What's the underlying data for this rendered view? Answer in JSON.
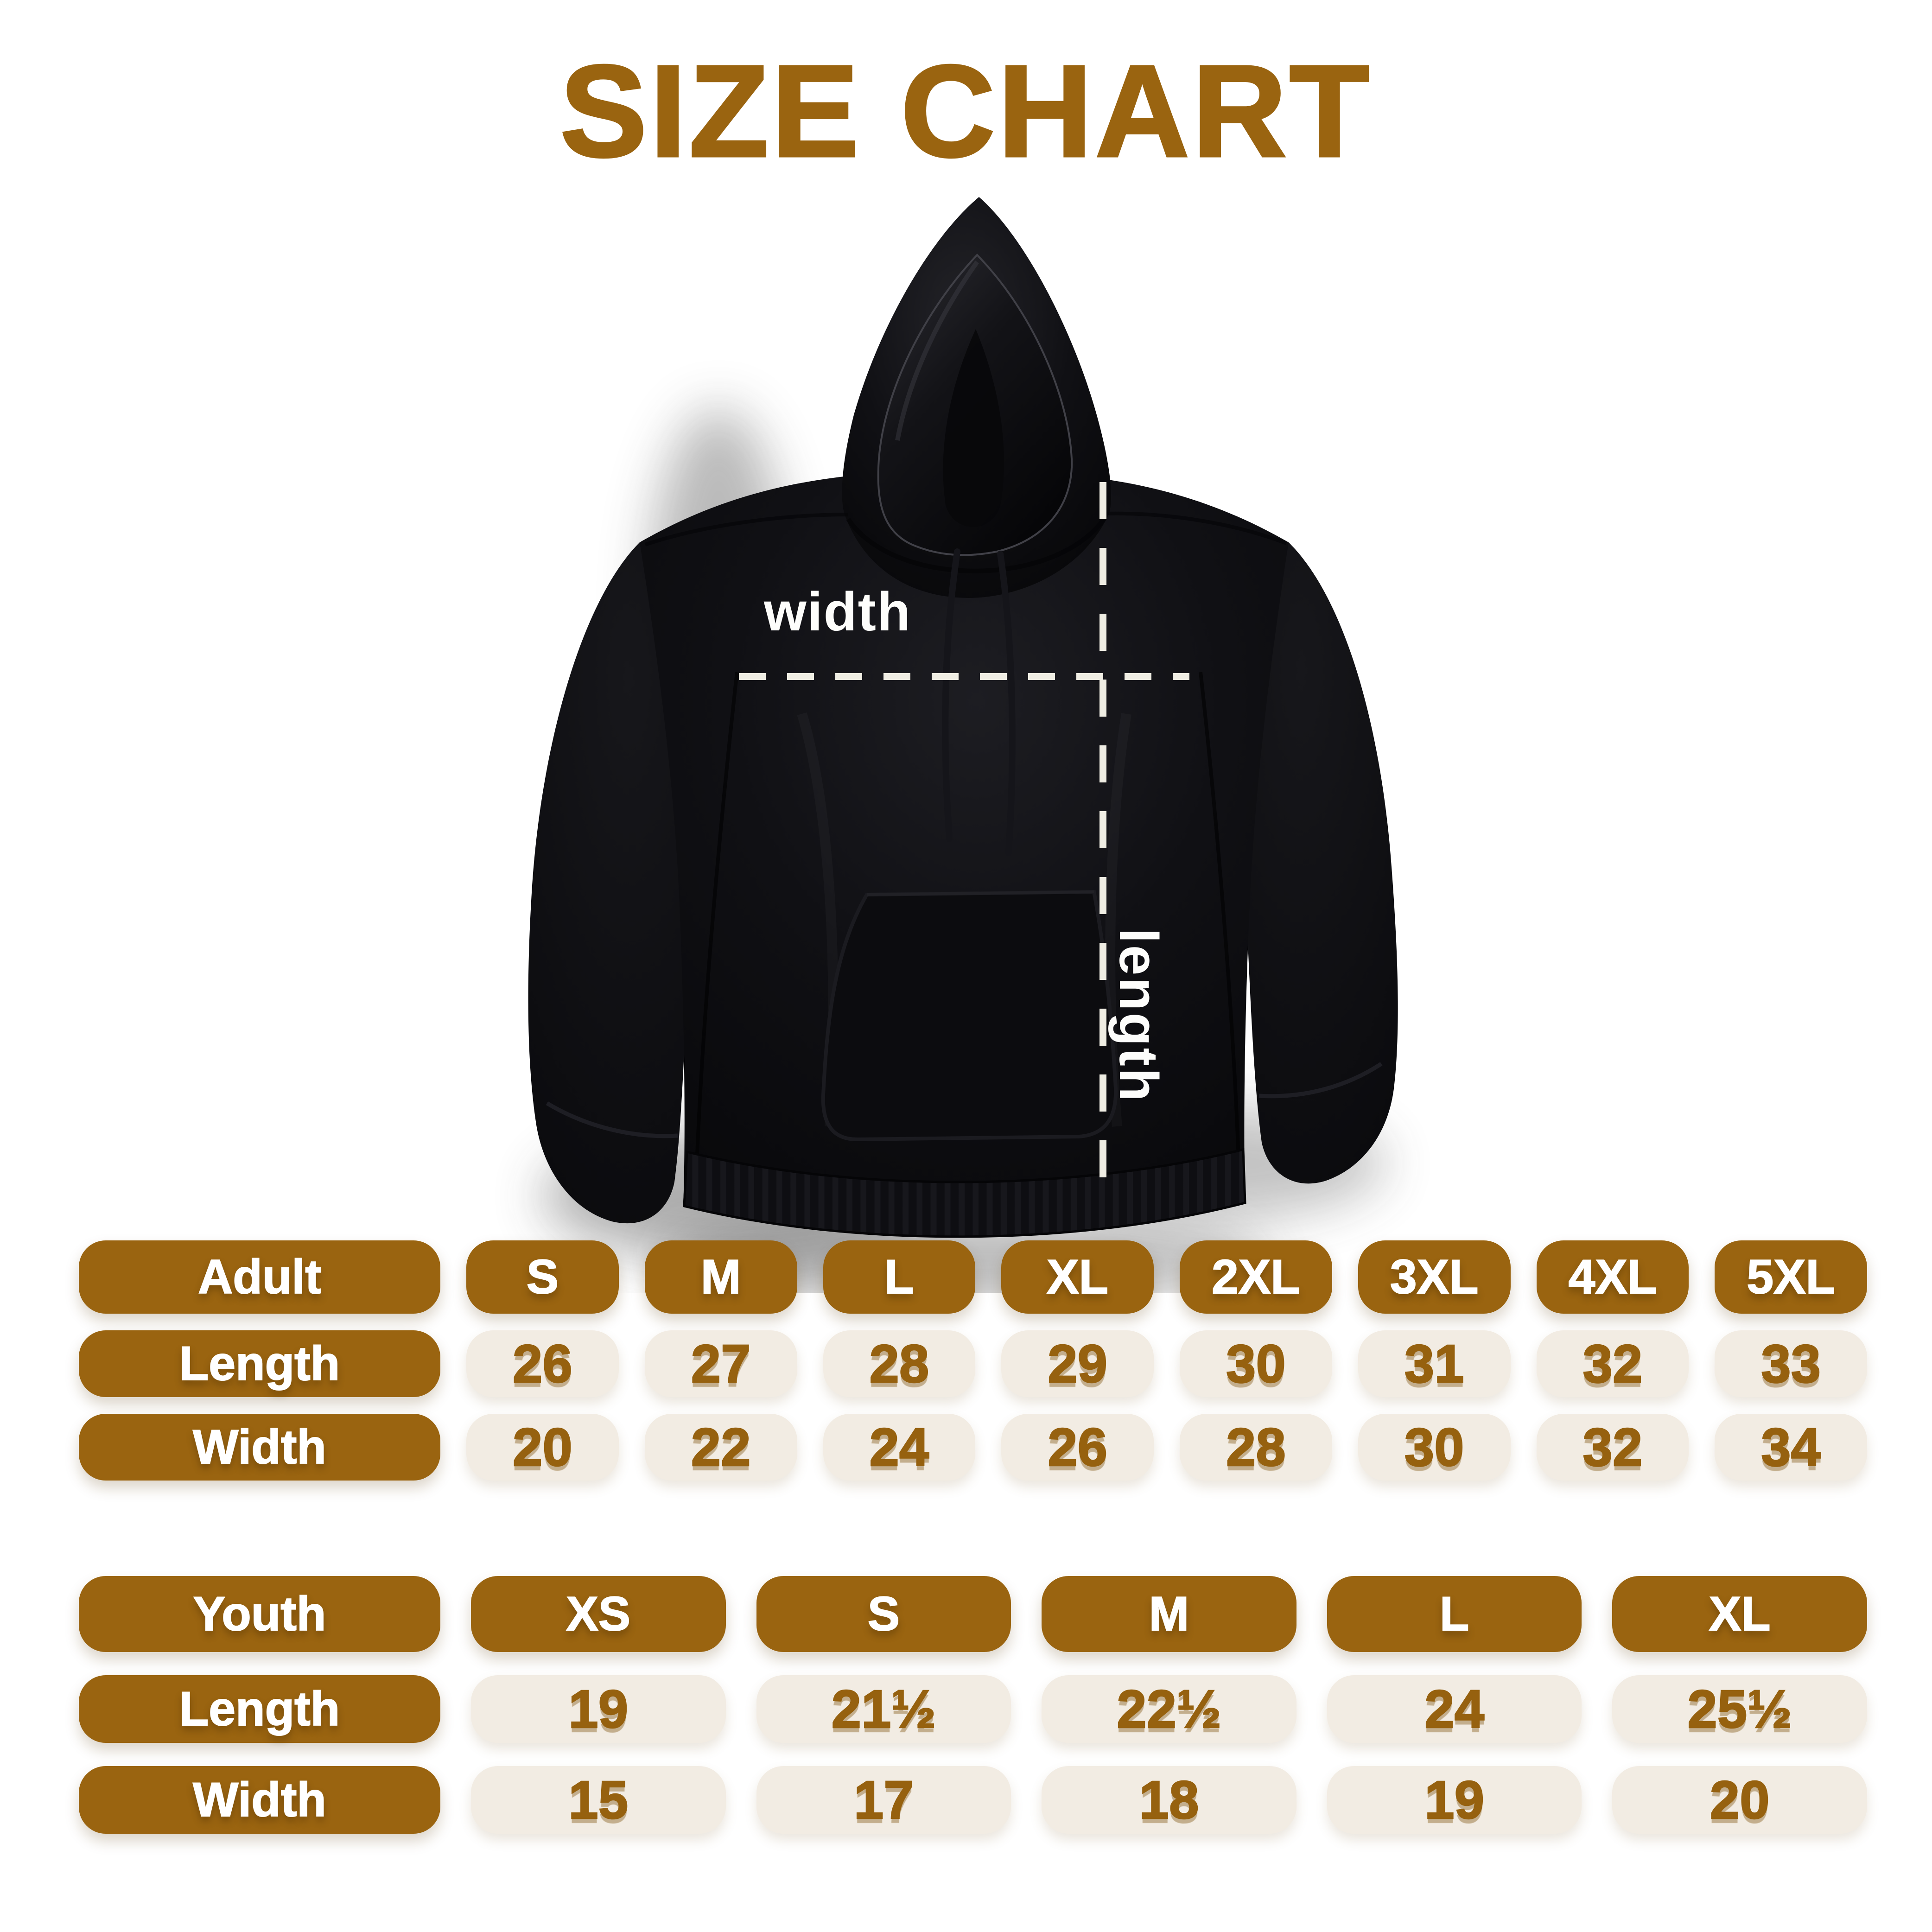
{
  "title": "SIZE CHART",
  "diagram": {
    "garment": "black pullover hoodie, flat lay, front view",
    "width_label": "width",
    "length_label": "length"
  },
  "colors": {
    "accent_brown": "#9A6410",
    "cell_cream": "#F2ECE3",
    "value_text": "#96610F",
    "header_text": "#FFFFFF",
    "dash_line": "#EFEDE3",
    "hoodie_black": "#0B0B0E",
    "background": "#FFFFFF"
  },
  "chart_data": [
    {
      "type": "table",
      "name": "adult",
      "title_cell": "Adult",
      "columns": [
        "S",
        "M",
        "L",
        "XL",
        "2XL",
        "3XL",
        "4XL",
        "5XL"
      ],
      "rows": [
        {
          "label": "Length",
          "values": [
            "26",
            "27",
            "28",
            "29",
            "30",
            "31",
            "32",
            "33"
          ]
        },
        {
          "label": "Width",
          "values": [
            "20",
            "22",
            "24",
            "26",
            "28",
            "30",
            "32",
            "34"
          ]
        }
      ]
    },
    {
      "type": "table",
      "name": "youth",
      "title_cell": "Youth",
      "columns": [
        "XS",
        "S",
        "M",
        "L",
        "XL"
      ],
      "rows": [
        {
          "label": "Length",
          "values": [
            "19",
            "21½",
            "22½",
            "24",
            "25½"
          ]
        },
        {
          "label": "Width",
          "values": [
            "15",
            "17",
            "18",
            "19",
            "20"
          ]
        }
      ]
    }
  ]
}
